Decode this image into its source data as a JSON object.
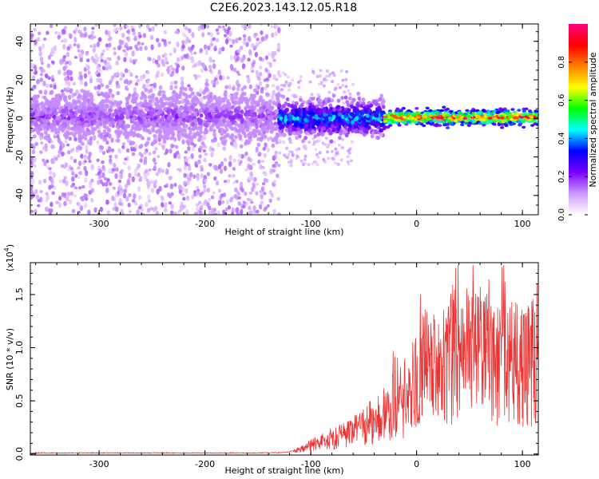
{
  "chart_data": [
    {
      "type": "heatmap",
      "title": "C2E6.2023.143.12.05.R18",
      "xlabel": "Height of straight line (km)",
      "ylabel": "Frequency (Hz)",
      "xlim": [
        -365,
        115
      ],
      "ylim": [
        -50,
        49
      ],
      "xticks": [
        -300,
        -200,
        -100,
        0,
        100
      ],
      "yticks": [
        -40,
        -20,
        0,
        20,
        40
      ],
      "colorbar": {
        "label": "Normalized spectral amplitude",
        "range": [
          0,
          1
        ],
        "ticks": [
          "0.0",
          "0.2",
          "0.4",
          "0.6",
          "0.8"
        ],
        "colors": [
          "#ffffff",
          "#cc99ff",
          "#7a00ff",
          "#0000ff",
          "#00ffff",
          "#00ff00",
          "#ffff00",
          "#ff7f00",
          "#ff0000",
          "#ff0080"
        ]
      },
      "regions": [
        {
          "x": [
            -365,
            -130
          ],
          "scatter_freq": [
            -50,
            49
          ],
          "band_freq": [
            -10,
            12
          ],
          "band_amplitude": 0.2
        },
        {
          "x": [
            -130,
            -30
          ],
          "band_freq": [
            -8,
            8
          ],
          "band_amplitude": 0.45
        },
        {
          "x": [
            -30,
            115
          ],
          "band_freq": [
            -3,
            4
          ],
          "band_amplitude": 0.95
        }
      ]
    },
    {
      "type": "line",
      "title": "",
      "xlabel": "Height of straight line (km)",
      "ylabel": "SNR (10 * v/v)",
      "yscale_note": "(x10",
      "yscale_exp": "4",
      "yscale_close": ")",
      "xlim": [
        -365,
        115
      ],
      "ylim": [
        -0.01,
        1.8
      ],
      "xticks": [
        -300,
        -200,
        -100,
        0,
        100
      ],
      "yticks": [
        "0.0",
        "0.5",
        "1.0",
        "1.5"
      ],
      "series": [
        {
          "color": "#ee3333",
          "envelope": [
            [
              -365,
              0.01
            ],
            [
              -150,
              0.01
            ],
            [
              -130,
              0.012
            ],
            [
              -120,
              0.02
            ],
            [
              -110,
              0.05
            ],
            [
              -100,
              0.1
            ],
            [
              -90,
              0.14
            ],
            [
              -80,
              0.17
            ],
            [
              -70,
              0.2
            ],
            [
              -60,
              0.24
            ],
            [
              -50,
              0.3
            ],
            [
              -40,
              0.38
            ],
            [
              -30,
              0.45
            ],
            [
              -20,
              0.55
            ],
            [
              -10,
              0.6
            ],
            [
              -5,
              0.7
            ],
            [
              0,
              0.85
            ],
            [
              10,
              0.95
            ],
            [
              20,
              1.05
            ],
            [
              40,
              1.1
            ],
            [
              60,
              1.05
            ],
            [
              80,
              1.05
            ],
            [
              100,
              1.0
            ],
            [
              115,
              1.02
            ]
          ]
        }
      ]
    }
  ]
}
